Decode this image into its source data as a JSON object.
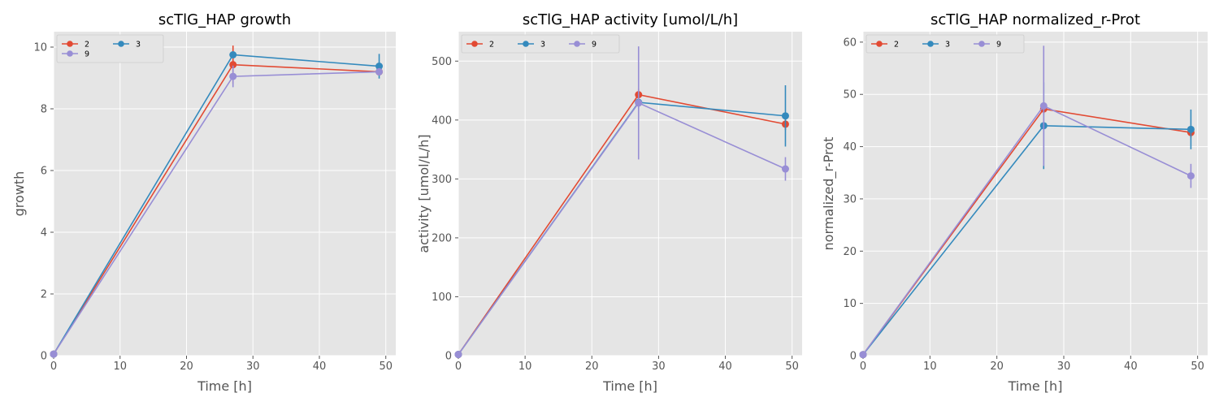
{
  "figure": {
    "background": "#ffffff",
    "plot_background": "#e5e5e5",
    "grid_color": "#ffffff",
    "tick_color": "#555555",
    "label_color": "#555555",
    "title_color": "#000000"
  },
  "chart_data": [
    {
      "type": "line",
      "title": "scTlG_HAP growth",
      "xlabel": "Time [h]",
      "ylabel": "growth",
      "xlim": [
        0,
        51.5
      ],
      "ylim": [
        0,
        10.5
      ],
      "xticks": [
        0,
        10,
        20,
        30,
        40,
        50
      ],
      "yticks": [
        0,
        2,
        4,
        6,
        8,
        10
      ],
      "grid": true,
      "legend": {
        "position": "top-left",
        "columns": 2
      },
      "series": [
        {
          "name": "2",
          "color": "#E24A33",
          "x": [
            0,
            27,
            49
          ],
          "y": [
            0.05,
            9.43,
            9.2
          ],
          "err": [
            0,
            0.62,
            0.1
          ]
        },
        {
          "name": "3",
          "color": "#348ABD",
          "x": [
            0,
            27,
            49
          ],
          "y": [
            0.05,
            9.75,
            9.38
          ],
          "err": [
            0,
            0.1,
            0.4
          ]
        },
        {
          "name": "9",
          "color": "#988ED5",
          "x": [
            0,
            27,
            49
          ],
          "y": [
            0.05,
            9.05,
            9.2
          ],
          "err": [
            0,
            0.35,
            0.12
          ]
        }
      ]
    },
    {
      "type": "line",
      "title": "scTlG_HAP activity [umol/L/h]",
      "xlabel": "Time [h]",
      "ylabel": "activity [umol/L/h]",
      "xlim": [
        0,
        51.5
      ],
      "ylim": [
        0,
        550
      ],
      "xticks": [
        0,
        10,
        20,
        30,
        40,
        50
      ],
      "yticks": [
        0,
        100,
        200,
        300,
        400,
        500
      ],
      "grid": true,
      "legend": {
        "position": "top-left",
        "columns": 3
      },
      "series": [
        {
          "name": "2",
          "color": "#E24A33",
          "x": [
            0,
            27,
            49
          ],
          "y": [
            2,
            443,
            393
          ],
          "err": [
            0,
            10,
            10
          ]
        },
        {
          "name": "3",
          "color": "#348ABD",
          "x": [
            0,
            27,
            49
          ],
          "y": [
            2,
            430,
            407
          ],
          "err": [
            0,
            10,
            52
          ]
        },
        {
          "name": "9",
          "color": "#988ED5",
          "x": [
            0,
            27,
            49
          ],
          "y": [
            2,
            429,
            317
          ],
          "err": [
            0,
            96,
            20
          ]
        }
      ]
    },
    {
      "type": "line",
      "title": "scTlG_HAP normalized_r-Prot",
      "xlabel": "Time [h]",
      "ylabel": "normalized_r-Prot",
      "xlim": [
        0,
        51.5
      ],
      "ylim": [
        0,
        62
      ],
      "xticks": [
        0,
        10,
        20,
        30,
        40,
        50
      ],
      "yticks": [
        0,
        10,
        20,
        30,
        40,
        50,
        60
      ],
      "grid": true,
      "legend": {
        "position": "top-left",
        "columns": 3
      },
      "series": [
        {
          "name": "2",
          "color": "#E24A33",
          "x": [
            0,
            27,
            49
          ],
          "y": [
            0.2,
            47.2,
            42.7
          ],
          "err": [
            0,
            1,
            1
          ]
        },
        {
          "name": "3",
          "color": "#348ABD",
          "x": [
            0,
            27,
            49
          ],
          "y": [
            0.2,
            44,
            43.3
          ],
          "err": [
            0,
            8.3,
            3.8
          ]
        },
        {
          "name": "9",
          "color": "#988ED5",
          "x": [
            0,
            27,
            49
          ],
          "y": [
            0.2,
            47.8,
            34.4
          ],
          "err": [
            0,
            11.5,
            2.3
          ]
        }
      ]
    }
  ]
}
